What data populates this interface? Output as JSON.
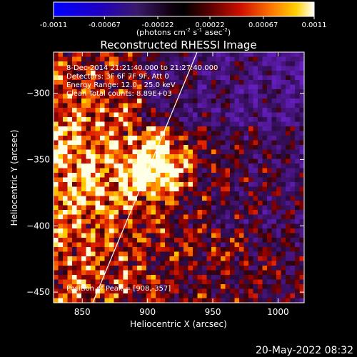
{
  "chart_data": {
    "type": "heatmap",
    "title": "Reconstructed RHESSI Image",
    "colorbar": {
      "ticks": [
        "-0.0011",
        "-0.00067",
        "-0.00022",
        "0.00022",
        "0.00067",
        "0.0011"
      ],
      "label_main": "(photons cm",
      "label_sup1": "-2",
      "label_mid1": " s",
      "label_sup2": "-1",
      "label_mid2": " asec",
      "label_sup3": "-2",
      "label_end": ")",
      "range": [
        -0.0011,
        0.0011
      ]
    },
    "xlabel": "Heliocentric X (arcsec)",
    "ylabel": "Heliocentric Y (arcsec)",
    "xlim": [
      828,
      1020
    ],
    "ylim": [
      -458,
      -269
    ],
    "xticks": [
      850,
      900,
      950,
      1000
    ],
    "xtick_labels": [
      "850",
      "900",
      "950",
      "1000"
    ],
    "yticks": [
      -300,
      -350,
      -400,
      -450
    ],
    "ytick_labels": [
      "−300",
      "−350",
      "−400",
      "−450"
    ],
    "info_lines": [
      "8-Dec-2014 21:21:40.000 to 21:27:40.000",
      "Detectors: 3F 6F 7F 9F, Att 0",
      "Energy Range: 12.0 - 25.0 keV",
      "Clean     Total counts: 8.89E+03"
    ],
    "peak_label": "Position of Peak = [908,-357]",
    "peak": {
      "x": 908,
      "y": -357
    },
    "limb_line": {
      "x1": 858,
      "y1": -458,
      "x2": 938,
      "y2": -269
    },
    "grid": false,
    "colormap": "blue-purple-black-red-orange-yellow-white"
  },
  "footer": {
    "timestamp": "20-May-2022 08:32"
  }
}
